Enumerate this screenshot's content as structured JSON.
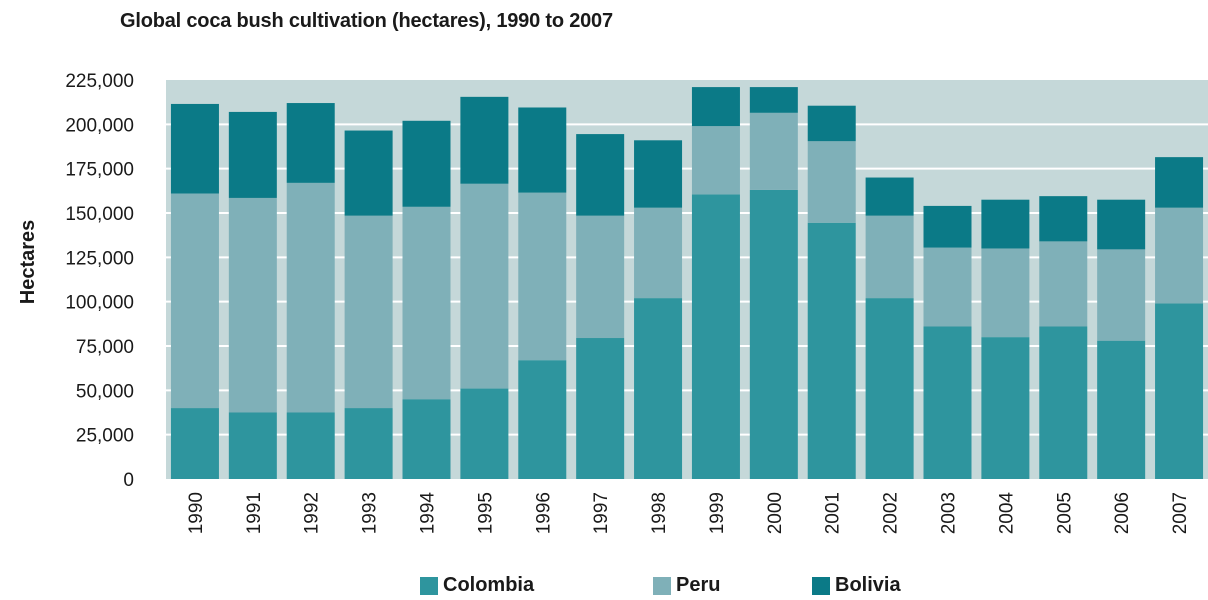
{
  "chart_data": {
    "type": "bar",
    "stacked": true,
    "title": "Global coca bush cultivation (hectares), 1990 to 2007",
    "xlabel": "",
    "ylabel": "Hectares",
    "ylim": [
      0,
      225000
    ],
    "yticks": [
      0,
      25000,
      50000,
      75000,
      100000,
      125000,
      150000,
      175000,
      200000,
      225000
    ],
    "ytick_labels": [
      "0",
      "25,000",
      "50,000",
      "75,000",
      "100,000",
      "125,000",
      "150,000",
      "175,000",
      "200,000",
      "225,000"
    ],
    "grid": true,
    "legend_position": "bottom",
    "categories": [
      "1990",
      "1991",
      "1992",
      "1993",
      "1994",
      "1995",
      "1996",
      "1997",
      "1998",
      "1999",
      "2000",
      "2001",
      "2002",
      "2003",
      "2004",
      "2005",
      "2006",
      "2007"
    ],
    "series": [
      {
        "name": "Colombia",
        "color": "#2e959e",
        "values": [
          40000,
          37500,
          37500,
          40000,
          45000,
          51000,
          67000,
          79500,
          102000,
          160500,
          163000,
          144500,
          102000,
          86000,
          80000,
          86000,
          78000,
          99000
        ]
      },
      {
        "name": "Peru",
        "color": "#7fb0b8",
        "values": [
          121000,
          121000,
          129500,
          108500,
          108500,
          115500,
          94500,
          69000,
          51000,
          38500,
          43500,
          46000,
          46500,
          44500,
          50000,
          48000,
          51500,
          54000
        ]
      },
      {
        "name": "Bolivia",
        "color": "#0b7a87",
        "values": [
          50500,
          48500,
          45000,
          48000,
          48500,
          49000,
          48000,
          46000,
          38000,
          22000,
          14500,
          20000,
          21500,
          23500,
          27500,
          25500,
          28000,
          28500
        ]
      }
    ]
  },
  "colors": {
    "plot_background": "#c5d8d9",
    "gridline": "#ffffff"
  }
}
